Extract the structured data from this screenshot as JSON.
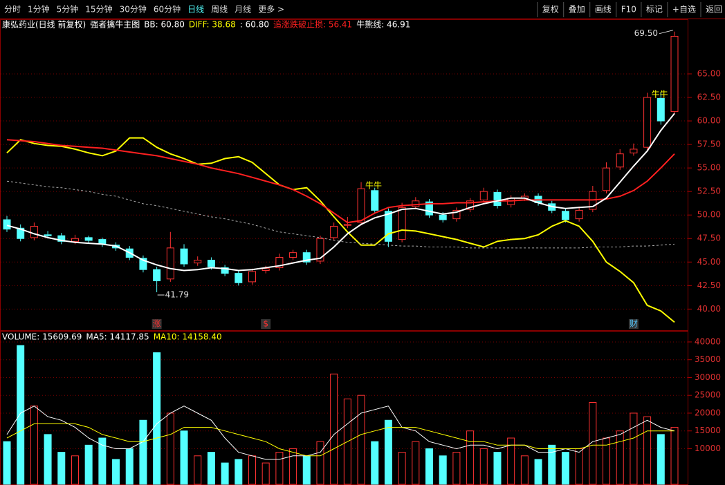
{
  "toolbar": {
    "left": [
      "分时",
      "1分钟",
      "5分钟",
      "15分钟",
      "30分钟",
      "60分钟",
      "日线",
      "周线",
      "月线",
      "更多 >"
    ],
    "active_index": 6,
    "right": [
      "复权",
      "叠加",
      "画线",
      "F10",
      "标记",
      "+自选",
      "返回"
    ]
  },
  "chart_data": [
    {
      "type": "candlestick",
      "header": [
        {
          "text": "康弘药业(日线 前复权)",
          "color": "#ffffff"
        },
        {
          "text": "强者擒牛主图",
          "color": "#ffffff"
        },
        {
          "text": "BB: 60.80",
          "color": "#ffffff"
        },
        {
          "text": "DIFF: 38.68",
          "color": "#ffff00"
        },
        {
          "text": ": 60.80",
          "color": "#ffffff"
        },
        {
          "text": "追涨跌破止损: 56.41",
          "color": "#ff2020"
        },
        {
          "text": "牛熊线: 46.91",
          "color": "#ffffff"
        }
      ],
      "up_color": "#ff3232",
      "down_color": "#54ffff",
      "grid": true,
      "ylim": [
        37.75,
        70.8
      ],
      "yticks": [
        {
          "value": 40,
          "label": "40.00"
        },
        {
          "value": 42.5,
          "label": "42.50"
        },
        {
          "value": 45,
          "label": "45.00"
        },
        {
          "value": 47.5,
          "label": "47.50"
        },
        {
          "value": 50,
          "label": "50.00"
        },
        {
          "value": 52.5,
          "label": "52.50"
        },
        {
          "value": 55,
          "label": "55.00"
        },
        {
          "value": 57.5,
          "label": "57.50"
        },
        {
          "value": 60,
          "label": "60.00"
        },
        {
          "value": 62.5,
          "label": "62.50"
        },
        {
          "value": 65,
          "label": "65.00"
        }
      ],
      "open": [
        49.5,
        48.6,
        47.6,
        47.9,
        47.8,
        47.2,
        47.6,
        47.4,
        46.8,
        46.4,
        45.4,
        44.2,
        43.2,
        46.4,
        44.9,
        45.2,
        44.4,
        43.8,
        42.9,
        44.1,
        44.4,
        45.5,
        46.0,
        45.1,
        47.6,
        48.9,
        49.2,
        52.6,
        50.4,
        47.4,
        50.9,
        51.4,
        50.0,
        49.6,
        50.6,
        51.6,
        52.4,
        51.1,
        51.8,
        52.0,
        51.2,
        50.4,
        49.6,
        50.6,
        52.6,
        55.1,
        56.6,
        57.2,
        62.4,
        61.0
      ],
      "high": [
        49.9,
        49.0,
        49.2,
        48.3,
        48.1,
        47.9,
        47.8,
        47.6,
        47.1,
        46.7,
        45.7,
        44.5,
        48.2,
        46.9,
        45.6,
        45.5,
        44.7,
        44.1,
        44.3,
        44.6,
        45.9,
        46.3,
        46.3,
        47.8,
        49.2,
        49.8,
        53.5,
        52.9,
        50.7,
        51.3,
        51.9,
        51.7,
        50.3,
        50.8,
        51.8,
        52.9,
        52.7,
        52.1,
        52.3,
        52.3,
        51.5,
        50.7,
        50.9,
        53.1,
        55.6,
        57.0,
        57.6,
        63.0,
        63.1,
        69.5
      ],
      "low": [
        48.2,
        47.2,
        47.3,
        47.5,
        46.9,
        46.9,
        47.0,
        46.6,
        46.2,
        45.2,
        43.9,
        41.79,
        42.9,
        44.5,
        44.6,
        44.2,
        43.5,
        42.5,
        42.6,
        43.8,
        44.1,
        45.2,
        44.7,
        44.8,
        47.3,
        48.6,
        48.9,
        50.2,
        46.6,
        47.1,
        50.6,
        49.7,
        49.2,
        49.3,
        50.3,
        51.3,
        50.7,
        50.8,
        51.5,
        51.0,
        50.2,
        49.2,
        49.3,
        50.3,
        52.3,
        54.8,
        56.3,
        56.9,
        59.6,
        60.7
      ],
      "close": [
        48.5,
        47.5,
        48.8,
        47.8,
        47.2,
        47.5,
        47.3,
        46.9,
        46.5,
        45.5,
        44.2,
        43.0,
        46.5,
        44.8,
        45.2,
        44.5,
        43.8,
        42.8,
        44.0,
        44.3,
        45.5,
        46.0,
        45.0,
        47.5,
        48.8,
        49.0,
        52.8,
        50.5,
        47.2,
        50.8,
        51.5,
        50.0,
        49.5,
        50.5,
        51.5,
        52.5,
        51.0,
        51.8,
        52.0,
        51.3,
        50.5,
        49.5,
        50.5,
        52.5,
        55.0,
        56.5,
        57.0,
        62.5,
        60.0,
        69.0
      ],
      "series": [
        {
          "color": "#ffff00",
          "values": [
            56.6,
            58.0,
            57.6,
            57.4,
            57.3,
            57.0,
            56.6,
            56.3,
            56.8,
            58.2,
            58.2,
            57.2,
            56.5,
            56.0,
            55.4,
            55.5,
            56.0,
            56.2,
            55.6,
            54.4,
            53.2,
            52.7,
            52.9,
            51.5,
            49.8,
            48.2,
            46.8,
            46.8,
            48.0,
            48.4,
            48.3,
            48.0,
            47.7,
            47.4,
            47.0,
            46.6,
            47.2,
            47.4,
            47.5,
            47.9,
            48.8,
            49.4,
            48.8,
            47.2,
            45.0,
            44.0,
            42.8,
            40.4,
            39.8,
            38.6
          ]
        },
        {
          "color": "#ff2020",
          "values": [
            58.0,
            57.9,
            57.8,
            57.6,
            57.4,
            57.3,
            57.2,
            57.1,
            56.9,
            56.7,
            56.5,
            56.3,
            56.0,
            55.7,
            55.4,
            55.0,
            54.7,
            54.4,
            54.0,
            53.6,
            53.2,
            52.7,
            52.0,
            51.2,
            50.2,
            49.2,
            49.4,
            50.2,
            50.8,
            51.0,
            51.1,
            51.2,
            51.2,
            51.3,
            51.3,
            51.4,
            51.5,
            51.5,
            51.6,
            51.6,
            51.6,
            51.6,
            51.6,
            51.6,
            51.7,
            52.0,
            52.6,
            53.6,
            55.0,
            56.5
          ]
        },
        {
          "color": "#ffffff",
          "values": [
            48.9,
            48.5,
            48.0,
            47.6,
            47.3,
            47.1,
            47.0,
            46.9,
            46.7,
            46.0,
            45.2,
            44.7,
            44.3,
            44.1,
            44.2,
            44.4,
            44.3,
            44.1,
            44.2,
            44.4,
            44.6,
            44.9,
            45.2,
            45.4,
            46.6,
            48.0,
            49.0,
            49.7,
            50.1,
            50.6,
            50.7,
            50.4,
            50.1,
            50.3,
            50.8,
            51.2,
            51.5,
            51.8,
            51.8,
            51.3,
            50.9,
            50.7,
            50.8,
            50.9,
            51.8,
            53.5,
            55.2,
            56.8,
            59.0,
            60.8
          ]
        },
        {
          "color": "#aaaaaa",
          "dashed": true,
          "values": [
            53.6,
            53.4,
            53.2,
            53.0,
            52.9,
            52.7,
            52.5,
            52.2,
            52.0,
            51.6,
            51.2,
            51.0,
            50.7,
            50.4,
            50.1,
            49.8,
            49.6,
            49.3,
            49.0,
            48.6,
            48.2,
            48.0,
            47.8,
            47.6,
            47.3,
            47.1,
            47.0,
            46.9,
            46.8,
            46.7,
            46.7,
            46.6,
            46.6,
            46.6,
            46.5,
            46.5,
            46.5,
            46.5,
            46.5,
            46.5,
            46.5,
            46.5,
            46.5,
            46.6,
            46.6,
            46.6,
            46.7,
            46.7,
            46.8,
            46.9
          ]
        }
      ],
      "low_label": "41.79",
      "high_label": "69.50",
      "annotations": [
        {
          "text": "牛牛",
          "index": 26
        },
        {
          "text": "牛牛",
          "index": 47
        }
      ],
      "flags": [
        {
          "text": "涨",
          "index": 11
        },
        {
          "text": "$",
          "index": 19
        },
        {
          "text": "财",
          "index": 46
        }
      ]
    },
    {
      "type": "bar",
      "header": [
        {
          "text": "VOLUME: 15609.69",
          "color": "#ffffff"
        },
        {
          "text": "MA5: 14117.85",
          "color": "#ffffff"
        },
        {
          "text": "MA10: 14158.40",
          "color": "#ffff00"
        }
      ],
      "ylim": [
        0,
        42900
      ],
      "yticks": [
        10000,
        15000,
        20000,
        25000,
        30000,
        35000,
        40000
      ],
      "values": [
        12000,
        39000,
        22000,
        14000,
        9000,
        8000,
        11000,
        13000,
        7000,
        10000,
        18000,
        37000,
        20000,
        15000,
        8000,
        9000,
        6000,
        7000,
        8000,
        6000,
        9000,
        10000,
        8000,
        12000,
        31000,
        24000,
        25000,
        12000,
        18000,
        9000,
        12000,
        10000,
        8000,
        9000,
        15000,
        10000,
        9000,
        13000,
        8000,
        7000,
        11000,
        9000,
        10000,
        23000,
        13000,
        15000,
        20000,
        19000,
        14000,
        16000
      ],
      "series": [
        {
          "color": "#ffffff",
          "values": [
            14000,
            20000,
            22000,
            19000,
            18000,
            16000,
            13000,
            11000,
            10000,
            10000,
            12000,
            17000,
            20000,
            22000,
            20000,
            18000,
            13000,
            9000,
            8000,
            7000,
            7000,
            8000,
            8000,
            9000,
            14000,
            17000,
            20000,
            21000,
            22000,
            16000,
            15000,
            12000,
            11000,
            10000,
            11000,
            11000,
            10000,
            11000,
            11000,
            9000,
            9000,
            10000,
            9000,
            12000,
            13000,
            14000,
            16000,
            18000,
            16000,
            15000
          ]
        },
        {
          "color": "#ffff00",
          "values": [
            13000,
            15000,
            17000,
            17000,
            17000,
            17000,
            16000,
            14000,
            13000,
            12000,
            12000,
            13000,
            14000,
            16000,
            16000,
            16000,
            15000,
            14000,
            13000,
            12000,
            10000,
            9000,
            8000,
            8000,
            10000,
            12000,
            14000,
            15000,
            16000,
            16000,
            16000,
            15000,
            14000,
            13000,
            12000,
            12000,
            11000,
            11000,
            11000,
            10000,
            10000,
            10000,
            10000,
            11000,
            11000,
            12000,
            13000,
            15000,
            15000,
            15000
          ]
        }
      ]
    }
  ]
}
